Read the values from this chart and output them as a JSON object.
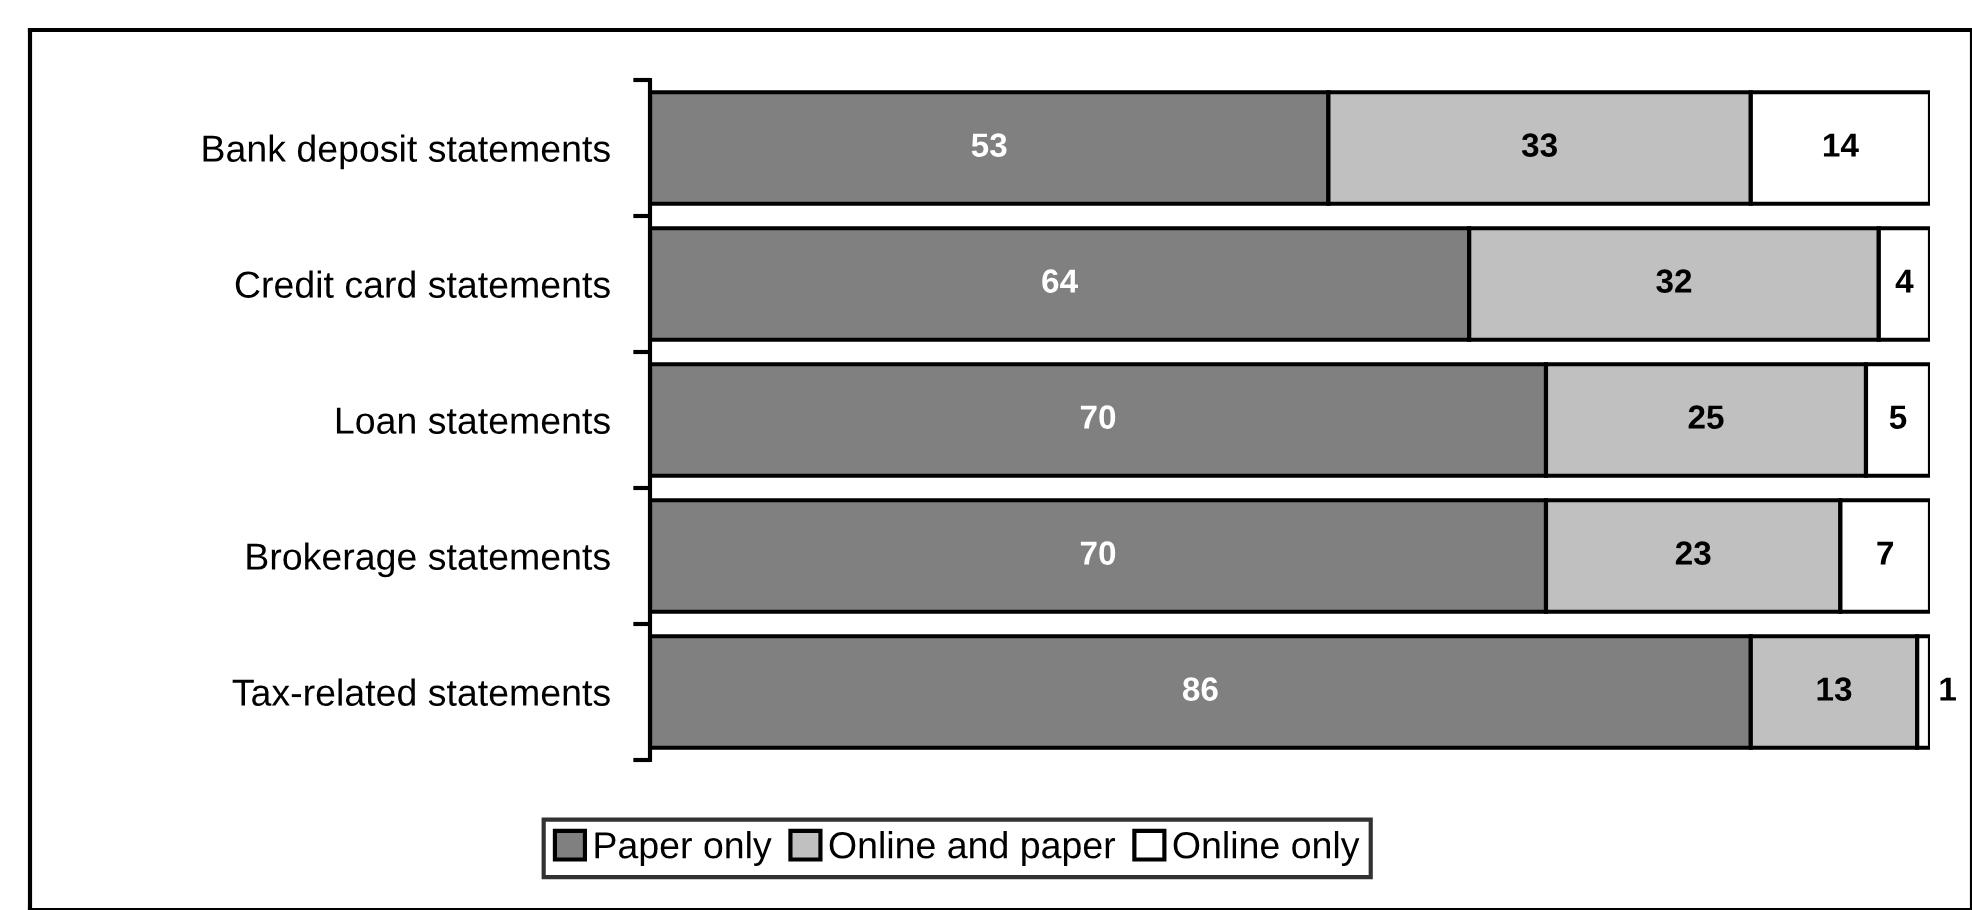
{
  "chart_data": {
    "type": "bar",
    "orientation": "horizontal",
    "stacked": true,
    "categories": [
      "Bank deposit statements",
      "Credit card statements",
      "Loan statements",
      "Brokerage statements",
      "Tax-related statements"
    ],
    "series": [
      {
        "name": "Paper only",
        "color": "#808080",
        "values": [
          53,
          64,
          70,
          70,
          86
        ]
      },
      {
        "name": "Online and paper",
        "color": "#c0c0c0",
        "values": [
          33,
          32,
          25,
          23,
          13
        ]
      },
      {
        "name": "Online only",
        "color": "#ffffff",
        "values": [
          14,
          4,
          5,
          7,
          1
        ]
      }
    ],
    "xlim": [
      0,
      100
    ],
    "data_labels": true,
    "legend": "bottom",
    "grid": false,
    "tick_labels": "y"
  }
}
